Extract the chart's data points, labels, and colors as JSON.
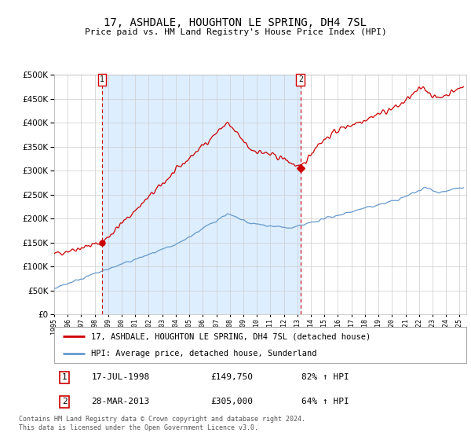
{
  "title": "17, ASHDALE, HOUGHTON LE SPRING, DH4 7SL",
  "subtitle": "Price paid vs. HM Land Registry's House Price Index (HPI)",
  "ylim": [
    0,
    500000
  ],
  "yticks": [
    0,
    50000,
    100000,
    150000,
    200000,
    250000,
    300000,
    350000,
    400000,
    450000,
    500000
  ],
  "ytick_labels": [
    "£0",
    "£50K",
    "£100K",
    "£150K",
    "£200K",
    "£250K",
    "£300K",
    "£350K",
    "£400K",
    "£450K",
    "£500K"
  ],
  "red_line_color": "#cc0000",
  "blue_line_color": "#6699cc",
  "shade_color": "#ddeeff",
  "dashed_vline_color": "#cc0000",
  "grid_color": "#cccccc",
  "background_color": "#ffffff",
  "legend_label_red": "17, ASHDALE, HOUGHTON LE SPRING, DH4 7SL (detached house)",
  "legend_label_blue": "HPI: Average price, detached house, Sunderland",
  "transaction1_label": "1",
  "transaction1_date": "17-JUL-1998",
  "transaction1_price": "£149,750",
  "transaction1_hpi": "82% ↑ HPI",
  "transaction2_label": "2",
  "transaction2_date": "28-MAR-2013",
  "transaction2_price": "£305,000",
  "transaction2_hpi": "64% ↑ HPI",
  "footer": "Contains HM Land Registry data © Crown copyright and database right 2024.\nThis data is licensed under the Open Government Licence v3.0.",
  "transaction1_x": 1998.54,
  "transaction1_y": 149750,
  "transaction2_x": 2013.23,
  "transaction2_y": 305000,
  "xmin": 1995.0,
  "xmax": 2025.5
}
